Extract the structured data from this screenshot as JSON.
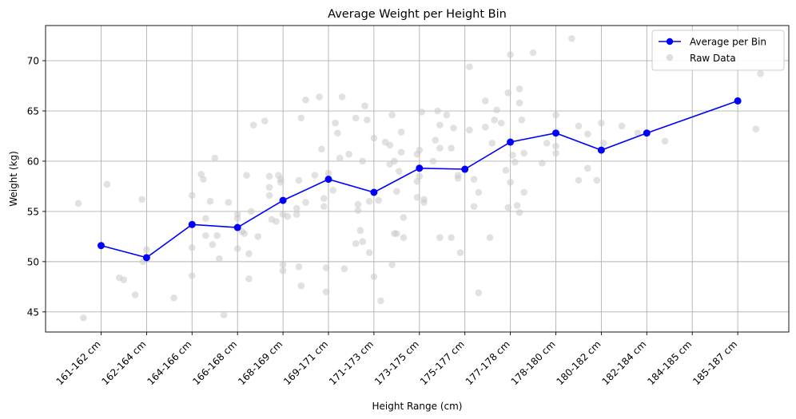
{
  "chart_data": {
    "type": "line",
    "title": "Average Weight per Height Bin",
    "xlabel": "Height Range (cm)",
    "ylabel": "Weight (kg)",
    "categories": [
      "161-162 cm",
      "162-164 cm",
      "164-166 cm",
      "166-168 cm",
      "168-169 cm",
      "169-171 cm",
      "171-173 cm",
      "173-175 cm",
      "175-177 cm",
      "177-178 cm",
      "178-180 cm",
      "180-182 cm",
      "182-184 cm",
      "184-185 cm",
      "185-187 cm"
    ],
    "ylim": [
      43.0,
      73.5
    ],
    "yticks": [
      45,
      50,
      55,
      60,
      65,
      70
    ],
    "grid": true,
    "legend": {
      "placement": "top-right",
      "entries": [
        "Average per Bin",
        "Raw Data"
      ]
    },
    "colors": {
      "average": "#0000ff",
      "raw": "#c8c8c8",
      "grid": "#b0b0b0"
    },
    "series": [
      {
        "name": "Average per Bin",
        "marker": "circle",
        "values": [
          51.6,
          50.4,
          53.7,
          53.4,
          56.1,
          58.2,
          56.9,
          59.3,
          59.2,
          61.9,
          62.8,
          61.1,
          62.8,
          null,
          66.0
        ]
      },
      {
        "name": "Raw Data",
        "type": "scatter",
        "points": [
          [
            -0.5,
            55.8
          ],
          [
            -0.39,
            44.4
          ],
          [
            0.13,
            57.7
          ],
          [
            0.4,
            48.4
          ],
          [
            0.5,
            48.2
          ],
          [
            0.75,
            46.7
          ],
          [
            0.9,
            56.2
          ],
          [
            0.92,
            50
          ],
          [
            1.0,
            51.2
          ],
          [
            1.6,
            46.4
          ],
          [
            2.0,
            56.6
          ],
          [
            2.0,
            51.4
          ],
          [
            2.0,
            48.6
          ],
          [
            2.2,
            58.7
          ],
          [
            2.25,
            58.2
          ],
          [
            2.3,
            54.3
          ],
          [
            2.3,
            52.6
          ],
          [
            2.4,
            56
          ],
          [
            2.45,
            51.7
          ],
          [
            2.5,
            60.3
          ],
          [
            2.55,
            52.6
          ],
          [
            2.6,
            50.3
          ],
          [
            2.7,
            44.7
          ],
          [
            2.8,
            55.9
          ],
          [
            3.0,
            54.7
          ],
          [
            3.0,
            54.3
          ],
          [
            3.0,
            51.3
          ],
          [
            3.1,
            53
          ],
          [
            3.15,
            52.8
          ],
          [
            3.2,
            58.6
          ],
          [
            3.25,
            50.8
          ],
          [
            3.25,
            48.3
          ],
          [
            3.3,
            55
          ],
          [
            3.35,
            63.6
          ],
          [
            3.45,
            52.5
          ],
          [
            3.6,
            64
          ],
          [
            3.7,
            58.5
          ],
          [
            3.7,
            57.4
          ],
          [
            3.7,
            56.6
          ],
          [
            3.75,
            54.2
          ],
          [
            3.85,
            54
          ],
          [
            3.9,
            58.6
          ],
          [
            3.95,
            58.2
          ],
          [
            3.95,
            57.9
          ],
          [
            4.0,
            49.7
          ],
          [
            4.0,
            49.1
          ],
          [
            4.0,
            54.7
          ],
          [
            4.1,
            54.5
          ],
          [
            4.3,
            55.3
          ],
          [
            4.3,
            54.7
          ],
          [
            4.35,
            58.1
          ],
          [
            4.35,
            49.5
          ],
          [
            4.4,
            64.3
          ],
          [
            4.4,
            47.6
          ],
          [
            4.5,
            55.9
          ],
          [
            4.5,
            66.1
          ],
          [
            4.7,
            58.6
          ],
          [
            4.8,
            66.4
          ],
          [
            4.85,
            61.2
          ],
          [
            4.9,
            56.3
          ],
          [
            4.9,
            55.5
          ],
          [
            4.95,
            49.4
          ],
          [
            4.95,
            47
          ],
          [
            5.0,
            58.8
          ],
          [
            5.1,
            57.1
          ],
          [
            5.15,
            63.8
          ],
          [
            5.2,
            62.8
          ],
          [
            5.25,
            60.3
          ],
          [
            5.3,
            66.4
          ],
          [
            5.35,
            49.3
          ],
          [
            5.45,
            60.7
          ],
          [
            5.6,
            64.3
          ],
          [
            5.6,
            51.8
          ],
          [
            5.65,
            55.7
          ],
          [
            5.65,
            55.1
          ],
          [
            5.7,
            53.1
          ],
          [
            5.75,
            52
          ],
          [
            5.75,
            60
          ],
          [
            5.8,
            65.5
          ],
          [
            5.85,
            64.1
          ],
          [
            5.9,
            56
          ],
          [
            5.9,
            50.9
          ],
          [
            6.0,
            48.5
          ],
          [
            6.0,
            62.3
          ],
          [
            6.1,
            56.1
          ],
          [
            6.15,
            46.1
          ],
          [
            6.25,
            61.9
          ],
          [
            6.35,
            61.6
          ],
          [
            6.35,
            59.7
          ],
          [
            6.4,
            64.6
          ],
          [
            6.4,
            49.7
          ],
          [
            6.45,
            60
          ],
          [
            6.45,
            52.8
          ],
          [
            6.5,
            52.8
          ],
          [
            6.5,
            57
          ],
          [
            6.55,
            59
          ],
          [
            6.6,
            62.9
          ],
          [
            6.6,
            60.9
          ],
          [
            6.65,
            54.4
          ],
          [
            6.65,
            52.4
          ],
          [
            6.95,
            60.7
          ],
          [
            6.95,
            58
          ],
          [
            6.95,
            56.4
          ],
          [
            7.0,
            61.1
          ],
          [
            7.0,
            58.5
          ],
          [
            7.05,
            64.9
          ],
          [
            7.1,
            56.2
          ],
          [
            7.1,
            55.9
          ],
          [
            7.3,
            60
          ],
          [
            7.35,
            62.1
          ],
          [
            7.4,
            65
          ],
          [
            7.45,
            63.6
          ],
          [
            7.45,
            61.3
          ],
          [
            7.45,
            52.4
          ],
          [
            7.6,
            64.6
          ],
          [
            7.7,
            61.3
          ],
          [
            7.7,
            52.4
          ],
          [
            7.75,
            63.3
          ],
          [
            7.85,
            58.6
          ],
          [
            7.85,
            58.3
          ],
          [
            7.9,
            50.9
          ],
          [
            8.1,
            63.1
          ],
          [
            8.1,
            69.4
          ],
          [
            8.2,
            58.2
          ],
          [
            8.2,
            55.5
          ],
          [
            8.3,
            46.9
          ],
          [
            8.3,
            56.9
          ],
          [
            8.45,
            66
          ],
          [
            8.45,
            63.4
          ],
          [
            8.55,
            52.4
          ],
          [
            8.6,
            61.8
          ],
          [
            8.65,
            64.1
          ],
          [
            8.7,
            65.1
          ],
          [
            8.8,
            63.8
          ],
          [
            8.9,
            59.1
          ],
          [
            8.95,
            55.4
          ],
          [
            8.95,
            66.8
          ],
          [
            9.0,
            70.6
          ],
          [
            9.0,
            57.9
          ],
          [
            9.05,
            60.6
          ],
          [
            9.1,
            59.9
          ],
          [
            9.15,
            55.6
          ],
          [
            9.2,
            67.2
          ],
          [
            9.2,
            65.8
          ],
          [
            9.2,
            54.9
          ],
          [
            9.25,
            64.1
          ],
          [
            9.3,
            56.9
          ],
          [
            9.3,
            60.8
          ],
          [
            9.5,
            70.8
          ],
          [
            9.7,
            59.8
          ],
          [
            9.8,
            61.8
          ],
          [
            10.0,
            64.6
          ],
          [
            10.0,
            61.5
          ],
          [
            10.0,
            60.8
          ],
          [
            10.35,
            72.2
          ],
          [
            10.5,
            58.1
          ],
          [
            10.5,
            63.5
          ],
          [
            10.7,
            59.3
          ],
          [
            10.7,
            62.7
          ],
          [
            10.9,
            58.1
          ],
          [
            11.0,
            63.8
          ],
          [
            11.05,
            61.8
          ],
          [
            11.45,
            63.5
          ],
          [
            11.8,
            62.8
          ],
          [
            12.4,
            62
          ],
          [
            14.4,
            63.2
          ],
          [
            14.5,
            68.7
          ]
        ]
      }
    ]
  }
}
